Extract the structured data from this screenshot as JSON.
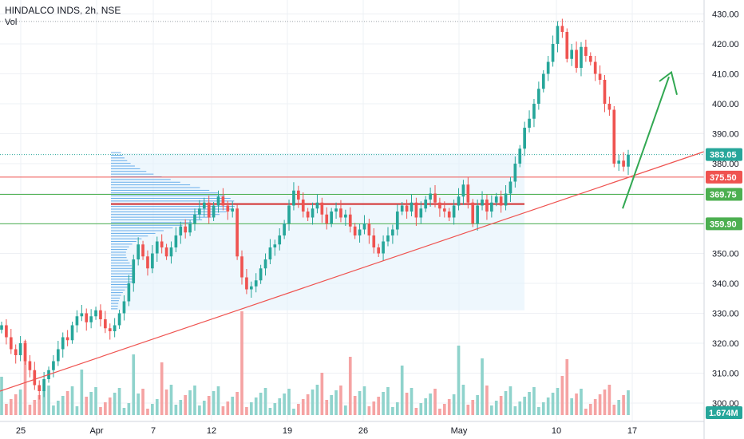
{
  "header": {
    "title": "HINDALCO INDS, 2h, NSE",
    "volume_label": "Vol"
  },
  "colors": {
    "up": "#26a69a",
    "down": "#ef5350",
    "up_volume": "#8fd3cc",
    "down_volume": "#f5a3a3",
    "profile": "#5aa6e8",
    "trendline": "#ef5350",
    "arrow": "#32a852",
    "support_line": "#4caf50",
    "resistance_line": "#ef5350",
    "grid": "#eef0f4"
  },
  "price_axis": {
    "ticks": [
      "430.00",
      "420.00",
      "410.00",
      "400.00",
      "390.00",
      "380.00",
      "370.00",
      "360.00",
      "350.00",
      "340.00",
      "330.00",
      "320.00",
      "310.00",
      "300.00"
    ],
    "tags": [
      {
        "text": "383.05",
        "value": 383.05,
        "bg": "#26a69a"
      },
      {
        "text": "375.50",
        "value": 375.5,
        "bg": "#ef5350"
      },
      {
        "text": "369.75",
        "value": 369.75,
        "bg": "#4caf50"
      },
      {
        "text": "359.90",
        "value": 359.9,
        "bg": "#4caf50"
      }
    ],
    "volume_tag": "1.674M"
  },
  "chart_data": {
    "type": "candlestick",
    "title": "HINDALCO INDS, 2h, NSE",
    "ylim": [
      296,
      432
    ],
    "x_ticks": [
      "25",
      "Apr",
      "7",
      "12",
      "19",
      "26",
      "May",
      "10",
      "17"
    ],
    "horizontal_levels": [
      375.5,
      369.75,
      359.9
    ],
    "point_of_control": 366.5,
    "last_price": 383.05,
    "volume_last": "1.674M"
  }
}
